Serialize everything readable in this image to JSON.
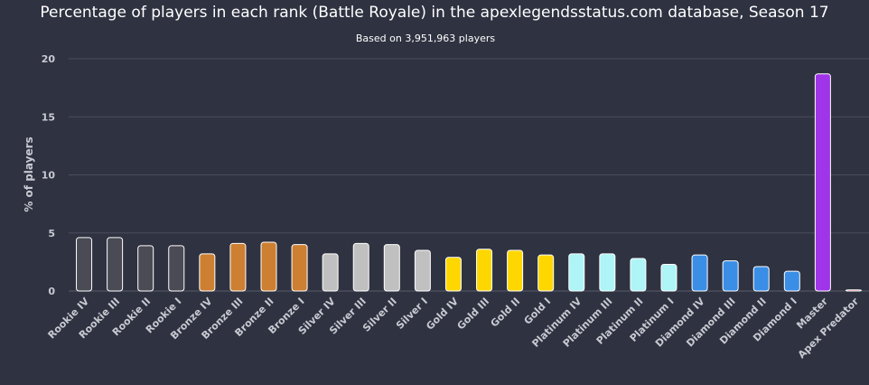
{
  "chart_data": {
    "type": "bar",
    "title": "Percentage of players in each rank (Battle Royale) in the apexlegendsstatus.com database, Season 17",
    "subtitle": "Based on 3,951,963 players",
    "ylabel": "% of players",
    "ylim": [
      0,
      20
    ],
    "yticks": [
      0,
      5,
      10,
      15,
      20
    ],
    "grid": true,
    "legend": "none",
    "categories": [
      "Rookie IV",
      "Rookie III",
      "Rookie II",
      "Rookie I",
      "Bronze IV",
      "Bronze III",
      "Bronze II",
      "Bronze I",
      "Silver IV",
      "Silver III",
      "Silver II",
      "Silver I",
      "Gold IV",
      "Gold III",
      "Gold II",
      "Gold I",
      "Platinum IV",
      "Platinum III",
      "Platinum II",
      "Platinum I",
      "Diamond IV",
      "Diamond III",
      "Diamond II",
      "Diamond I",
      "Master",
      "Apex Predator"
    ],
    "values": [
      4.6,
      4.6,
      3.9,
      3.9,
      3.2,
      4.1,
      4.2,
      4.0,
      3.2,
      4.1,
      4.0,
      3.5,
      2.9,
      3.6,
      3.5,
      3.1,
      3.2,
      3.2,
      2.8,
      2.3,
      3.1,
      2.6,
      2.1,
      1.7,
      18.7,
      0.1
    ],
    "colors": [
      "#4a4b54",
      "#4a4b54",
      "#4a4b54",
      "#4a4b54",
      "#cd7f32",
      "#cd7f32",
      "#cd7f32",
      "#cd7f32",
      "#c0c0c0",
      "#c0c0c0",
      "#c0c0c0",
      "#c0c0c0",
      "#ffd700",
      "#ffd700",
      "#ffd700",
      "#ffd700",
      "#aff4f6",
      "#aff4f6",
      "#aff4f6",
      "#aff4f6",
      "#3a8ee6",
      "#3a8ee6",
      "#3a8ee6",
      "#3a8ee6",
      "#a034e8",
      "#c8102e"
    ],
    "gridline_color": "#4a4d5c",
    "bar_border_color": "#ffffff"
  }
}
